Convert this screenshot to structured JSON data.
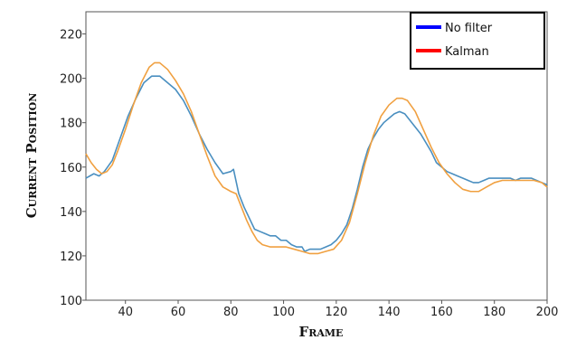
{
  "chart_data": {
    "type": "line",
    "xlabel": "Frame",
    "ylabel": "Current Position",
    "xlim": [
      25,
      200
    ],
    "ylim": [
      100,
      230
    ],
    "x_ticks": [
      40,
      60,
      80,
      100,
      120,
      140,
      160,
      180,
      200
    ],
    "y_ticks": [
      100,
      120,
      140,
      160,
      180,
      200,
      220
    ],
    "grid": false,
    "legend": {
      "placement": "top-right",
      "entries": [
        {
          "label": "No filter",
          "color": "#0000ff"
        },
        {
          "label": "Kalman",
          "color": "#ff0000"
        }
      ]
    },
    "series": [
      {
        "color": "#4a8fc0",
        "points": [
          [
            25,
            155
          ],
          [
            28,
            157
          ],
          [
            30,
            156
          ],
          [
            32,
            158
          ],
          [
            35,
            163
          ],
          [
            38,
            173
          ],
          [
            41,
            183
          ],
          [
            44,
            191
          ],
          [
            47,
            198
          ],
          [
            50,
            201
          ],
          [
            53,
            201
          ],
          [
            56,
            198
          ],
          [
            59,
            195
          ],
          [
            62,
            190
          ],
          [
            65,
            183
          ],
          [
            68,
            175
          ],
          [
            71,
            168
          ],
          [
            74,
            162
          ],
          [
            77,
            157
          ],
          [
            80,
            158
          ],
          [
            81,
            159
          ],
          [
            83,
            148
          ],
          [
            85,
            142
          ],
          [
            87,
            137
          ],
          [
            89,
            132
          ],
          [
            91,
            131
          ],
          [
            93,
            130
          ],
          [
            95,
            129
          ],
          [
            97,
            129
          ],
          [
            99,
            127
          ],
          [
            101,
            127
          ],
          [
            103,
            125
          ],
          [
            105,
            124
          ],
          [
            107,
            124
          ],
          [
            108,
            122
          ],
          [
            110,
            123
          ],
          [
            112,
            123
          ],
          [
            114,
            123
          ],
          [
            116,
            124
          ],
          [
            118,
            125
          ],
          [
            120,
            127
          ],
          [
            122,
            130
          ],
          [
            124,
            134
          ],
          [
            126,
            141
          ],
          [
            128,
            150
          ],
          [
            130,
            160
          ],
          [
            132,
            168
          ],
          [
            134,
            173
          ],
          [
            136,
            177
          ],
          [
            138,
            180
          ],
          [
            140,
            182
          ],
          [
            142,
            184
          ],
          [
            144,
            185
          ],
          [
            146,
            184
          ],
          [
            148,
            181
          ],
          [
            150,
            178
          ],
          [
            152,
            175
          ],
          [
            154,
            171
          ],
          [
            156,
            167
          ],
          [
            158,
            162
          ],
          [
            160,
            160
          ],
          [
            162,
            158
          ],
          [
            164,
            157
          ],
          [
            166,
            156
          ],
          [
            168,
            155
          ],
          [
            170,
            154
          ],
          [
            172,
            153
          ],
          [
            174,
            153
          ],
          [
            176,
            154
          ],
          [
            178,
            155
          ],
          [
            180,
            155
          ],
          [
            182,
            155
          ],
          [
            184,
            155
          ],
          [
            186,
            155
          ],
          [
            188,
            154
          ],
          [
            190,
            155
          ],
          [
            192,
            155
          ],
          [
            194,
            155
          ],
          [
            196,
            154
          ],
          [
            198,
            153
          ],
          [
            200,
            152
          ]
        ]
      },
      {
        "color": "#f0a040",
        "points": [
          [
            25,
            166
          ],
          [
            27,
            162
          ],
          [
            29,
            159
          ],
          [
            31,
            157
          ],
          [
            33,
            158
          ],
          [
            35,
            161
          ],
          [
            37,
            167
          ],
          [
            40,
            177
          ],
          [
            43,
            188
          ],
          [
            46,
            198
          ],
          [
            49,
            205
          ],
          [
            51,
            207
          ],
          [
            53,
            207
          ],
          [
            56,
            204
          ],
          [
            59,
            199
          ],
          [
            62,
            193
          ],
          [
            65,
            185
          ],
          [
            68,
            175
          ],
          [
            71,
            165
          ],
          [
            74,
            156
          ],
          [
            77,
            151
          ],
          [
            80,
            149
          ],
          [
            82,
            148
          ],
          [
            84,
            142
          ],
          [
            86,
            136
          ],
          [
            88,
            131
          ],
          [
            90,
            127
          ],
          [
            92,
            125
          ],
          [
            95,
            124
          ],
          [
            98,
            124
          ],
          [
            101,
            124
          ],
          [
            104,
            123
          ],
          [
            107,
            122
          ],
          [
            110,
            121
          ],
          [
            113,
            121
          ],
          [
            116,
            122
          ],
          [
            119,
            123
          ],
          [
            122,
            127
          ],
          [
            125,
            135
          ],
          [
            128,
            148
          ],
          [
            131,
            162
          ],
          [
            134,
            174
          ],
          [
            137,
            183
          ],
          [
            140,
            188
          ],
          [
            143,
            191
          ],
          [
            145,
            191
          ],
          [
            147,
            190
          ],
          [
            150,
            185
          ],
          [
            153,
            177
          ],
          [
            156,
            169
          ],
          [
            159,
            162
          ],
          [
            162,
            157
          ],
          [
            165,
            153
          ],
          [
            168,
            150
          ],
          [
            171,
            149
          ],
          [
            174,
            149
          ],
          [
            177,
            151
          ],
          [
            180,
            153
          ],
          [
            183,
            154
          ],
          [
            186,
            154
          ],
          [
            189,
            154
          ],
          [
            192,
            154
          ],
          [
            195,
            154
          ],
          [
            198,
            153
          ],
          [
            200,
            151
          ]
        ]
      }
    ]
  }
}
